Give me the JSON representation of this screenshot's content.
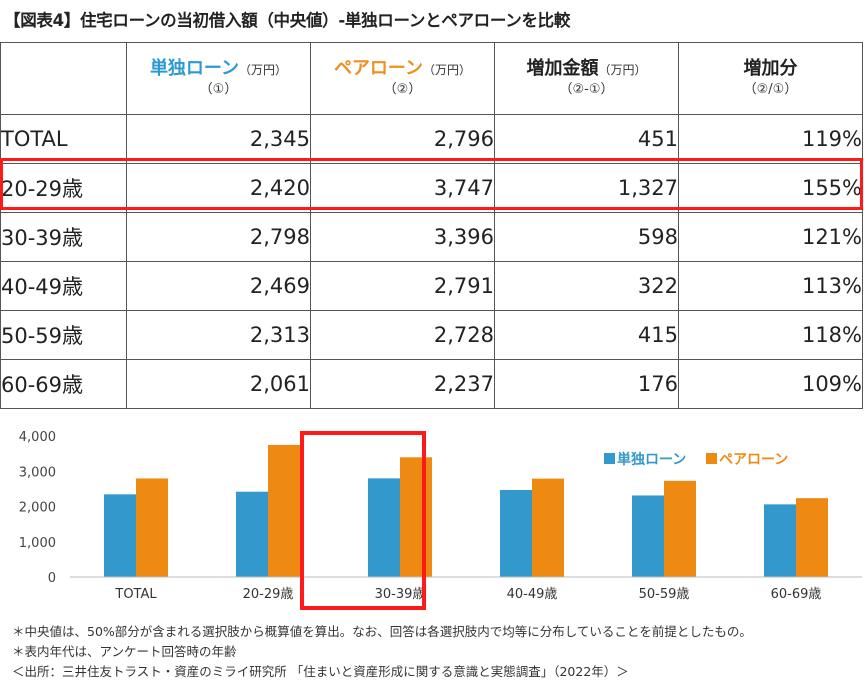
{
  "title": "【図表4】住宅ローンの当初借入額（中央値）-単独ローンとペアローンを比較",
  "table": {
    "headers": [
      {
        "main": "単独ローン",
        "unit": "（万円）",
        "sub": "（①）",
        "color": "#2c9ad3"
      },
      {
        "main": "ペアローン",
        "unit": "（万円）",
        "sub": "（②）",
        "color": "#ee8f1f"
      },
      {
        "main": "増加金額",
        "unit": "（万円）",
        "sub": "（②-①）",
        "color": "#222222"
      },
      {
        "main": "増加分",
        "unit": "",
        "sub": "（②/①）",
        "color": "#222222"
      }
    ],
    "rows": [
      {
        "label": "TOTAL",
        "single": "2,345",
        "pair": "2,796",
        "diff": "451",
        "ratio": "119%"
      },
      {
        "label": "20-29歳",
        "single": "2,420",
        "pair": "3,747",
        "diff": "1,327",
        "ratio": "155%"
      },
      {
        "label": "30-39歳",
        "single": "2,798",
        "pair": "3,396",
        "diff": "598",
        "ratio": "121%"
      },
      {
        "label": "40-49歳",
        "single": "2,469",
        "pair": "2,791",
        "diff": "322",
        "ratio": "113%"
      },
      {
        "label": "50-59歳",
        "single": "2,313",
        "pair": "2,728",
        "diff": "415",
        "ratio": "118%"
      },
      {
        "label": "60-69歳",
        "single": "2,061",
        "pair": "2,237",
        "diff": "176",
        "ratio": "109%"
      }
    ],
    "highlighted_row": "20-29歳"
  },
  "chart_data": {
    "type": "bar",
    "title": "",
    "xlabel": "",
    "ylabel": "",
    "categories": [
      "TOTAL",
      "20-29歳",
      "30-39歳",
      "40-49歳",
      "50-59歳",
      "60-69歳"
    ],
    "series": [
      {
        "name": "単独ローン",
        "color": "#3399cc",
        "values": [
          2345,
          2420,
          2798,
          2469,
          2313,
          2061
        ]
      },
      {
        "name": "ペアローン",
        "color": "#ee8a12",
        "values": [
          2796,
          3747,
          3396,
          2791,
          2728,
          2237
        ]
      }
    ],
    "ylim": [
      0,
      4000
    ],
    "yticks": [
      "0",
      "1,000",
      "2,000",
      "3,000",
      "4,000"
    ],
    "grid": false,
    "legend": "top-right",
    "highlighted_category": "20-29歳",
    "highlight_color": "#ff1a1a"
  },
  "notes": [
    "＊中央値は、50%部分が含まれる選択肢から概算値を算出。なお、回答は各選択肢内で均等に分布していることを前提としたもの。",
    "＊表内年代は、アンケート回答時の年齢",
    "＜出所：三井住友トラスト・資産のミライ研究所 「住まいと資産形成に関する意識と実態調査」（2022年）＞"
  ]
}
